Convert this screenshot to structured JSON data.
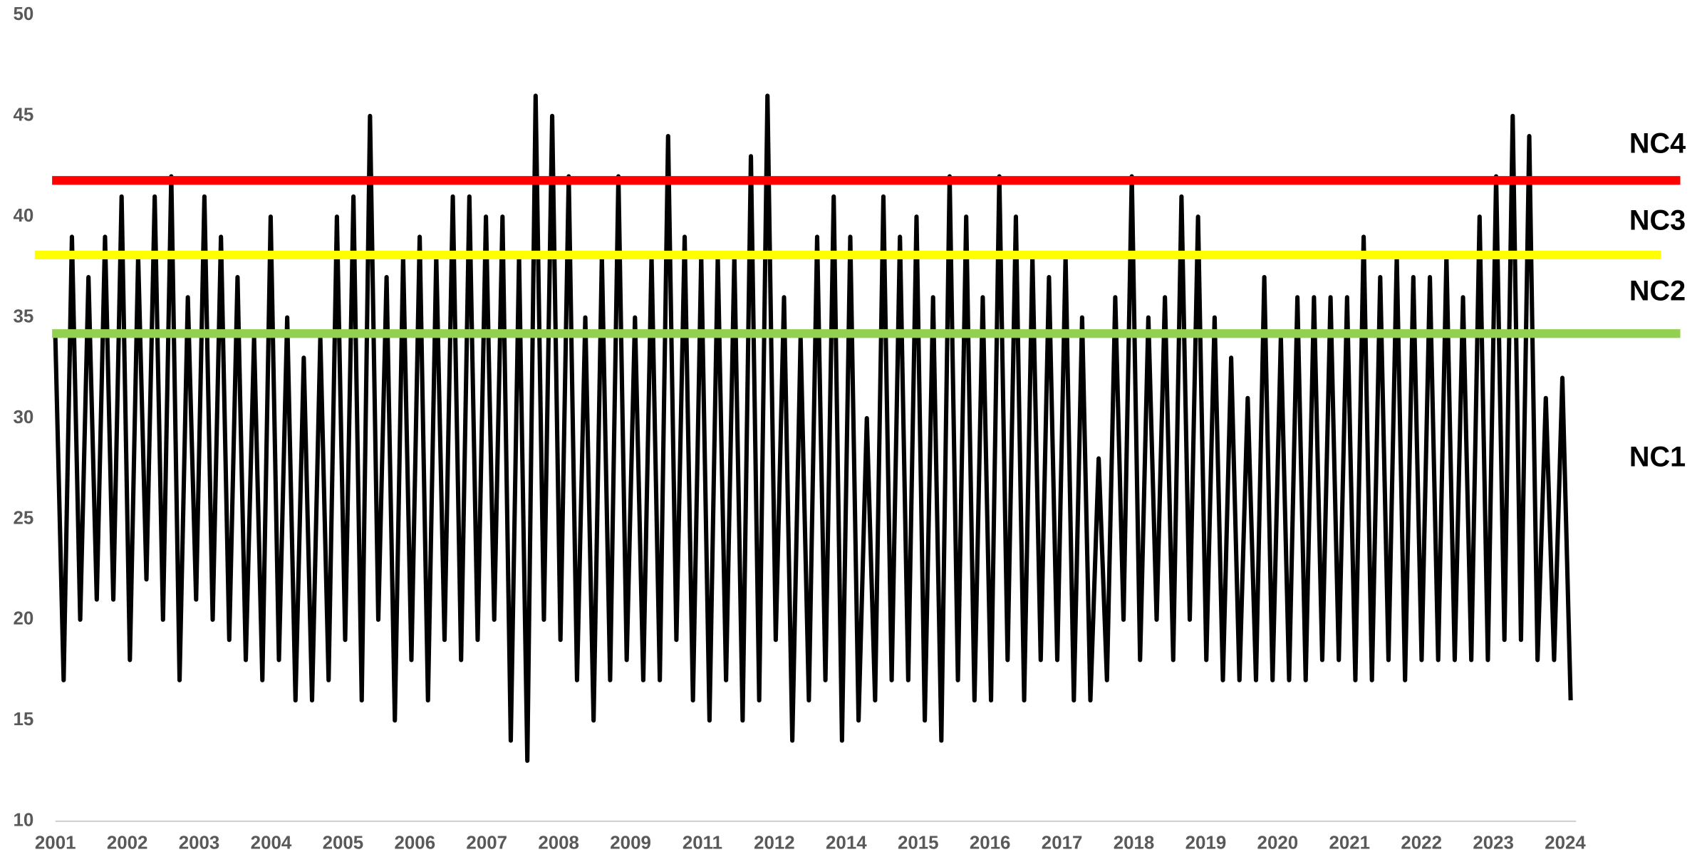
{
  "chart_data": {
    "type": "line",
    "x_labels": [
      "2001",
      "2002",
      "2003",
      "2004",
      "2005",
      "2006",
      "2007",
      "2008",
      "2009",
      "2011",
      "2012",
      "2014",
      "2015",
      "2016",
      "2017",
      "2018",
      "2019",
      "2020",
      "2021",
      "2022",
      "2023",
      "2024"
    ],
    "ylim": [
      10,
      50
    ],
    "yticks": [
      10,
      15,
      20,
      25,
      30,
      35,
      40,
      45,
      50
    ],
    "series": [
      {
        "color": "#000000",
        "values": [
          34,
          17,
          39,
          20,
          37,
          21,
          39,
          21,
          41,
          18,
          38,
          22,
          41,
          20,
          42,
          17,
          36,
          21,
          41,
          20,
          39,
          19,
          37,
          18,
          34,
          17,
          40,
          18,
          35,
          16,
          33,
          16,
          34,
          17,
          40,
          19,
          41,
          16,
          45,
          20,
          37,
          15,
          38,
          18,
          39,
          16,
          38,
          19,
          41,
          18,
          41,
          19,
          40,
          20,
          40,
          14,
          38,
          13,
          46,
          20,
          45,
          19,
          42,
          17,
          35,
          15,
          38,
          17,
          42,
          18,
          35,
          17,
          38,
          17,
          44,
          19,
          39,
          16,
          38,
          15,
          38,
          17,
          38,
          15,
          43,
          16,
          46,
          19,
          36,
          14,
          34,
          16,
          39,
          17,
          41,
          14,
          39,
          15,
          30,
          16,
          41,
          17,
          39,
          17,
          40,
          15,
          36,
          14,
          42,
          17,
          40,
          16,
          36,
          16,
          42,
          18,
          40,
          16,
          38,
          18,
          37,
          18,
          38,
          16,
          35,
          16,
          28,
          17,
          36,
          20,
          42,
          18,
          35,
          20,
          36,
          18,
          41,
          20,
          40,
          18,
          35,
          17,
          33,
          17,
          31,
          17,
          37,
          17,
          34,
          17,
          36,
          17,
          36,
          18,
          36,
          18,
          36,
          17,
          39,
          17,
          37,
          18,
          38,
          17,
          37,
          18,
          37,
          18,
          38,
          18,
          36,
          18,
          40,
          18,
          42,
          19,
          45,
          19,
          44,
          18,
          31,
          18,
          32,
          16
        ]
      }
    ],
    "reference_lines": [
      {
        "label": "NC4",
        "value": 41.8,
        "color": "#ff0000"
      },
      {
        "label": "NC3",
        "value": 38.1,
        "color": "#ffff00"
      },
      {
        "label": "NC2",
        "value": 34.2,
        "color": "#92d050"
      }
    ],
    "annotations": [
      "NC1"
    ]
  }
}
